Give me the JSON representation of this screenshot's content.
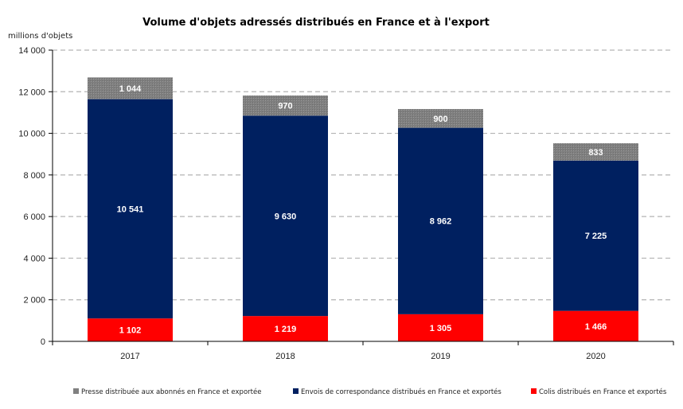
{
  "chart_data": {
    "type": "bar",
    "stacked": true,
    "title": "Volume d'objets adressés distribués en France et à l'export",
    "ylabel": "millions d'objets",
    "xlabel": "",
    "categories": [
      "2017",
      "2018",
      "2019",
      "2020"
    ],
    "ylim": [
      0,
      14000
    ],
    "yticks": [
      0,
      2000,
      4000,
      6000,
      8000,
      10000,
      12000,
      14000
    ],
    "ytick_labels": [
      "0",
      "2 000",
      "4 000",
      "6 000",
      "8 000",
      "10 000",
      "12 000",
      "14 000"
    ],
    "grid": true,
    "legend_position": "bottom",
    "series": [
      {
        "name": "Colis distribués en France et exportés",
        "color": "#ff0000",
        "values": [
          1102,
          1219,
          1305,
          1466
        ],
        "labels": [
          "1 102",
          "1 219",
          "1 305",
          "1 466"
        ]
      },
      {
        "name": "Envois de correspondance distribués en France et exportés",
        "color": "#002060",
        "values": [
          10541,
          9630,
          8962,
          7225
        ],
        "labels": [
          "10 541",
          "9 630",
          "8 962",
          "7 225"
        ]
      },
      {
        "name": "Presse distribuée aux abonnés en France et exportée",
        "color": "#808080",
        "values": [
          1044,
          970,
          900,
          833
        ],
        "labels": [
          "1 044",
          "970",
          "900",
          "833"
        ]
      }
    ],
    "legend_order": [
      2,
      1,
      0
    ]
  }
}
